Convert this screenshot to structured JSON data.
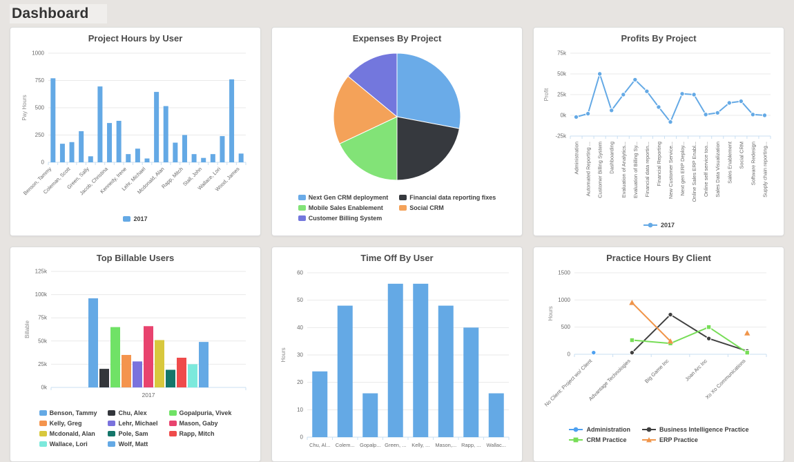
{
  "page": {
    "title": "Dashboard"
  },
  "colors": {
    "page_background": "#e7e4e1",
    "card_background": "#ffffff",
    "primary_blue": "#64a9e5",
    "grid_line": "#e9e9e9",
    "axis_line": "#c9dff2"
  },
  "chart_data": [
    {
      "id": "project-hours-by-user",
      "type": "bar",
      "title": "Project Hours by User",
      "ylabel": "Pay Hours",
      "ylim": [
        0,
        1000
      ],
      "yticks": [
        0,
        250,
        500,
        750,
        1000
      ],
      "ytick_labels": [
        "0",
        "250",
        "500",
        "750",
        "1000"
      ],
      "categories": [
        "Benson, Tammy",
        "Coleman, Scott",
        "Green, Sally",
        "Jacob, Christina",
        "Kennedy, Irene",
        "Lehr, Michael",
        "Mcdonald, Alan",
        "Rapp, Mitch",
        "Stall, John",
        "Wallace, Lori",
        "Wood, James"
      ],
      "category_every_n_bars": 2,
      "values": [
        770,
        170,
        185,
        285,
        55,
        695,
        360,
        380,
        75,
        125,
        35,
        645,
        515,
        180,
        250,
        75,
        40,
        75,
        240,
        760,
        80
      ],
      "bar_color": "#64a9e5",
      "legend": [
        {
          "label": "2017",
          "color": "#64a9e5",
          "marker": "square"
        }
      ]
    },
    {
      "id": "expenses-by-project",
      "type": "pie",
      "title": "Expenses By Project",
      "slices": [
        {
          "label": "Next Gen CRM deployment",
          "pct": 28,
          "color": "#6aabe8"
        },
        {
          "label": "Financial data reporting fixes",
          "pct": 22,
          "color": "#36393e"
        },
        {
          "label": "Mobile Sales Enablement",
          "pct": 18,
          "color": "#82e377"
        },
        {
          "label": "Social CRM",
          "pct": 18,
          "color": "#f4a259"
        },
        {
          "label": "Customer Billing System",
          "pct": 14,
          "color": "#7377dd"
        }
      ],
      "legend_columns": 2
    },
    {
      "id": "profits-by-project",
      "type": "line",
      "title": "Profits By Project",
      "ylabel": "Profit",
      "ylim": [
        -25000,
        75000
      ],
      "yticks": [
        -25000,
        0,
        25000,
        50000,
        75000
      ],
      "ytick_labels": [
        "-25k",
        "0k",
        "25k",
        "50k",
        "75k"
      ],
      "categories": [
        "Administration",
        "Automated Reporting ...",
        "Customer Billing System",
        "Dashboarding",
        "Evaluation of Analytics...",
        "Evaluation of Billing Sy...",
        "Financial data reportin...",
        "Financial Reporting",
        "New Customer Service...",
        "Next gen ERP Deploy...",
        "Online Sales ERP Enabl...",
        "Online self service too...",
        "Sales Data Visualization",
        "Sales Enablement",
        "Social CRM",
        "Software Redesign",
        "Supply chain reporting..."
      ],
      "series": [
        {
          "name": "2017",
          "color": "#64a9e5",
          "marker": "circle",
          "values": [
            -2000,
            2000,
            50000,
            6000,
            25000,
            43000,
            29000,
            10000,
            -8000,
            26000,
            25000,
            1000,
            3000,
            15000,
            17000,
            1000,
            0
          ]
        }
      ]
    },
    {
      "id": "top-billable-users",
      "type": "bar",
      "title": "Top Billable Users",
      "ylabel": "Billable",
      "ylim": [
        0,
        125000
      ],
      "yticks": [
        0,
        25000,
        50000,
        75000,
        100000,
        125000
      ],
      "ytick_labels": [
        "0k",
        "25k",
        "50k",
        "75k",
        "100k",
        "125k"
      ],
      "categories": [
        "2017"
      ],
      "series": [
        {
          "name": "Benson, Tammy",
          "color": "#64a9e5",
          "value": 96000
        },
        {
          "name": "Chu, Alex",
          "color": "#33363b",
          "value": 20000
        },
        {
          "name": "Gopalpuria, Vivek",
          "color": "#70e266",
          "value": 65000
        },
        {
          "name": "Kelly, Greg",
          "color": "#f4944d",
          "value": 35000
        },
        {
          "name": "Lehr, Michael",
          "color": "#7a72dd",
          "value": 28000
        },
        {
          "name": "Mason, Gaby",
          "color": "#e8436e",
          "value": 66000
        },
        {
          "name": "Mcdonald, Alan",
          "color": "#d8c83d",
          "value": 51000
        },
        {
          "name": "Pole, Sam",
          "color": "#14766a",
          "value": 19000
        },
        {
          "name": "Rapp, Mitch",
          "color": "#ef4b4b",
          "value": 32000
        },
        {
          "name": "Wallace, Lori",
          "color": "#7ce9dc",
          "value": 25000
        },
        {
          "name": "Wolf, Matt",
          "color": "#64a9e5",
          "value": 49000
        }
      ],
      "legend_columns": 3
    },
    {
      "id": "time-off-by-user",
      "type": "bar",
      "title": "Time Off By User",
      "ylabel": "Hours",
      "ylim": [
        0,
        60
      ],
      "yticks": [
        0,
        10,
        20,
        30,
        40,
        50,
        60
      ],
      "ytick_labels": [
        "0",
        "10",
        "20",
        "30",
        "40",
        "50",
        "60"
      ],
      "categories": [
        "Chu, Al...",
        "Colem...",
        "Gopalp...",
        "Green, ...",
        "Kelly, ...",
        "Mason,...",
        "Rapp, ...",
        "Wallac..."
      ],
      "values": [
        24,
        48,
        16,
        56,
        56,
        48,
        40,
        16
      ],
      "bar_color": "#64a9e5"
    },
    {
      "id": "practice-hours-by-client",
      "type": "line",
      "title": "Practice Hours By Client",
      "ylabel": "Hours",
      "ylim": [
        0,
        1500
      ],
      "yticks": [
        0,
        500,
        1000,
        1500
      ],
      "ytick_labels": [
        "0",
        "500",
        "1000",
        "1500"
      ],
      "categories": [
        "No Client: Project wo/ Client",
        "Advantage Technologies",
        "Big Game Inc",
        "Joan Arc Inc",
        "Xo Xo Communications"
      ],
      "series": [
        {
          "name": "Administration",
          "color": "#4da0f0",
          "marker": "circle",
          "values": [
            30,
            null,
            null,
            null,
            null
          ]
        },
        {
          "name": "Business Intelligence Practice",
          "color": "#404040",
          "marker": "circle",
          "values": [
            null,
            30,
            730,
            290,
            60
          ]
        },
        {
          "name": "CRM Practice",
          "color": "#77dd57",
          "marker": "square",
          "values": [
            null,
            260,
            200,
            500,
            30
          ]
        },
        {
          "name": "ERP Practice",
          "color": "#f0954a",
          "marker": "triangle",
          "values": [
            null,
            950,
            240,
            null,
            390
          ]
        }
      ],
      "legend_columns": 2
    }
  ]
}
